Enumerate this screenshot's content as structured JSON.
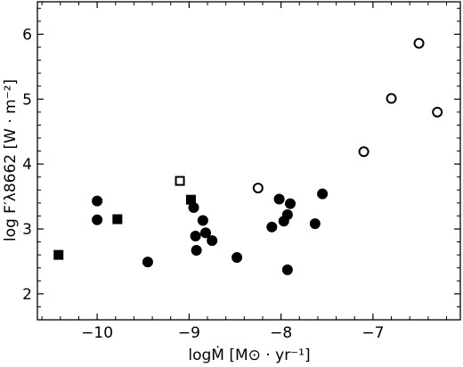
{
  "chart_data": {
    "type": "scatter",
    "xlabel": "logṀ [M⊙ · yr⁻¹]",
    "ylabel": "log F′λ8662 [W · m⁻²]",
    "xlim": [
      -10.65,
      -6.05
    ],
    "ylim": [
      1.6,
      6.5
    ],
    "xticks": [
      -10,
      -9,
      -8,
      -7
    ],
    "yticks": [
      2,
      3,
      4,
      5,
      6
    ],
    "xtick_labels": [
      "−10",
      "−9",
      "−8",
      "−7"
    ],
    "ytick_labels": [
      "2",
      "3",
      "4",
      "5",
      "6"
    ],
    "grid": false,
    "series": [
      {
        "marker": "filled-circle",
        "color": "#000000",
        "points": [
          {
            "x": -10.0,
            "y": 3.43
          },
          {
            "x": -10.0,
            "y": 3.14
          },
          {
            "x": -9.45,
            "y": 2.49
          },
          {
            "x": -8.95,
            "y": 3.33
          },
          {
            "x": -8.93,
            "y": 2.89
          },
          {
            "x": -8.92,
            "y": 2.67
          },
          {
            "x": -8.85,
            "y": 3.13
          },
          {
            "x": -8.82,
            "y": 2.94
          },
          {
            "x": -8.75,
            "y": 2.82
          },
          {
            "x": -8.48,
            "y": 2.56
          },
          {
            "x": -8.1,
            "y": 3.03
          },
          {
            "x": -8.02,
            "y": 3.46
          },
          {
            "x": -7.97,
            "y": 3.12
          },
          {
            "x": -7.93,
            "y": 3.22
          },
          {
            "x": -7.93,
            "y": 2.37
          },
          {
            "x": -7.9,
            "y": 3.39
          },
          {
            "x": -7.63,
            "y": 3.08
          },
          {
            "x": -7.55,
            "y": 3.54
          }
        ]
      },
      {
        "marker": "filled-square",
        "color": "#000000",
        "points": [
          {
            "x": -10.42,
            "y": 2.6
          },
          {
            "x": -9.78,
            "y": 3.15
          },
          {
            "x": -8.98,
            "y": 3.45
          }
        ]
      },
      {
        "marker": "open-square",
        "color": "#000000",
        "points": [
          {
            "x": -9.1,
            "y": 3.74
          }
        ]
      },
      {
        "marker": "open-circle",
        "color": "#000000",
        "points": [
          {
            "x": -8.25,
            "y": 3.63
          },
          {
            "x": -7.1,
            "y": 4.19
          },
          {
            "x": -6.8,
            "y": 5.01
          },
          {
            "x": -6.5,
            "y": 5.86
          },
          {
            "x": -6.3,
            "y": 4.8
          }
        ]
      }
    ]
  }
}
